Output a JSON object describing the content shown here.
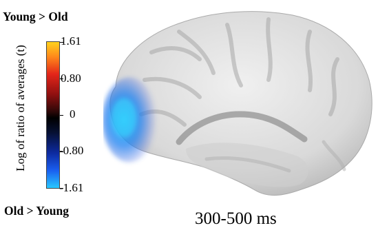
{
  "figure": {
    "top_label": "Young > Old",
    "bottom_label": "Old > Young",
    "colorbar": {
      "title": "Log of ratio of averages (t)",
      "ticks": [
        "1.61",
        "0.80",
        "0",
        "-0.80",
        "-1.61"
      ],
      "colors": [
        "#ffd21c",
        "#e3261a",
        "#000000",
        "#0d2aa0",
        "#28c8ff"
      ]
    },
    "caption": "300-500 ms"
  }
}
